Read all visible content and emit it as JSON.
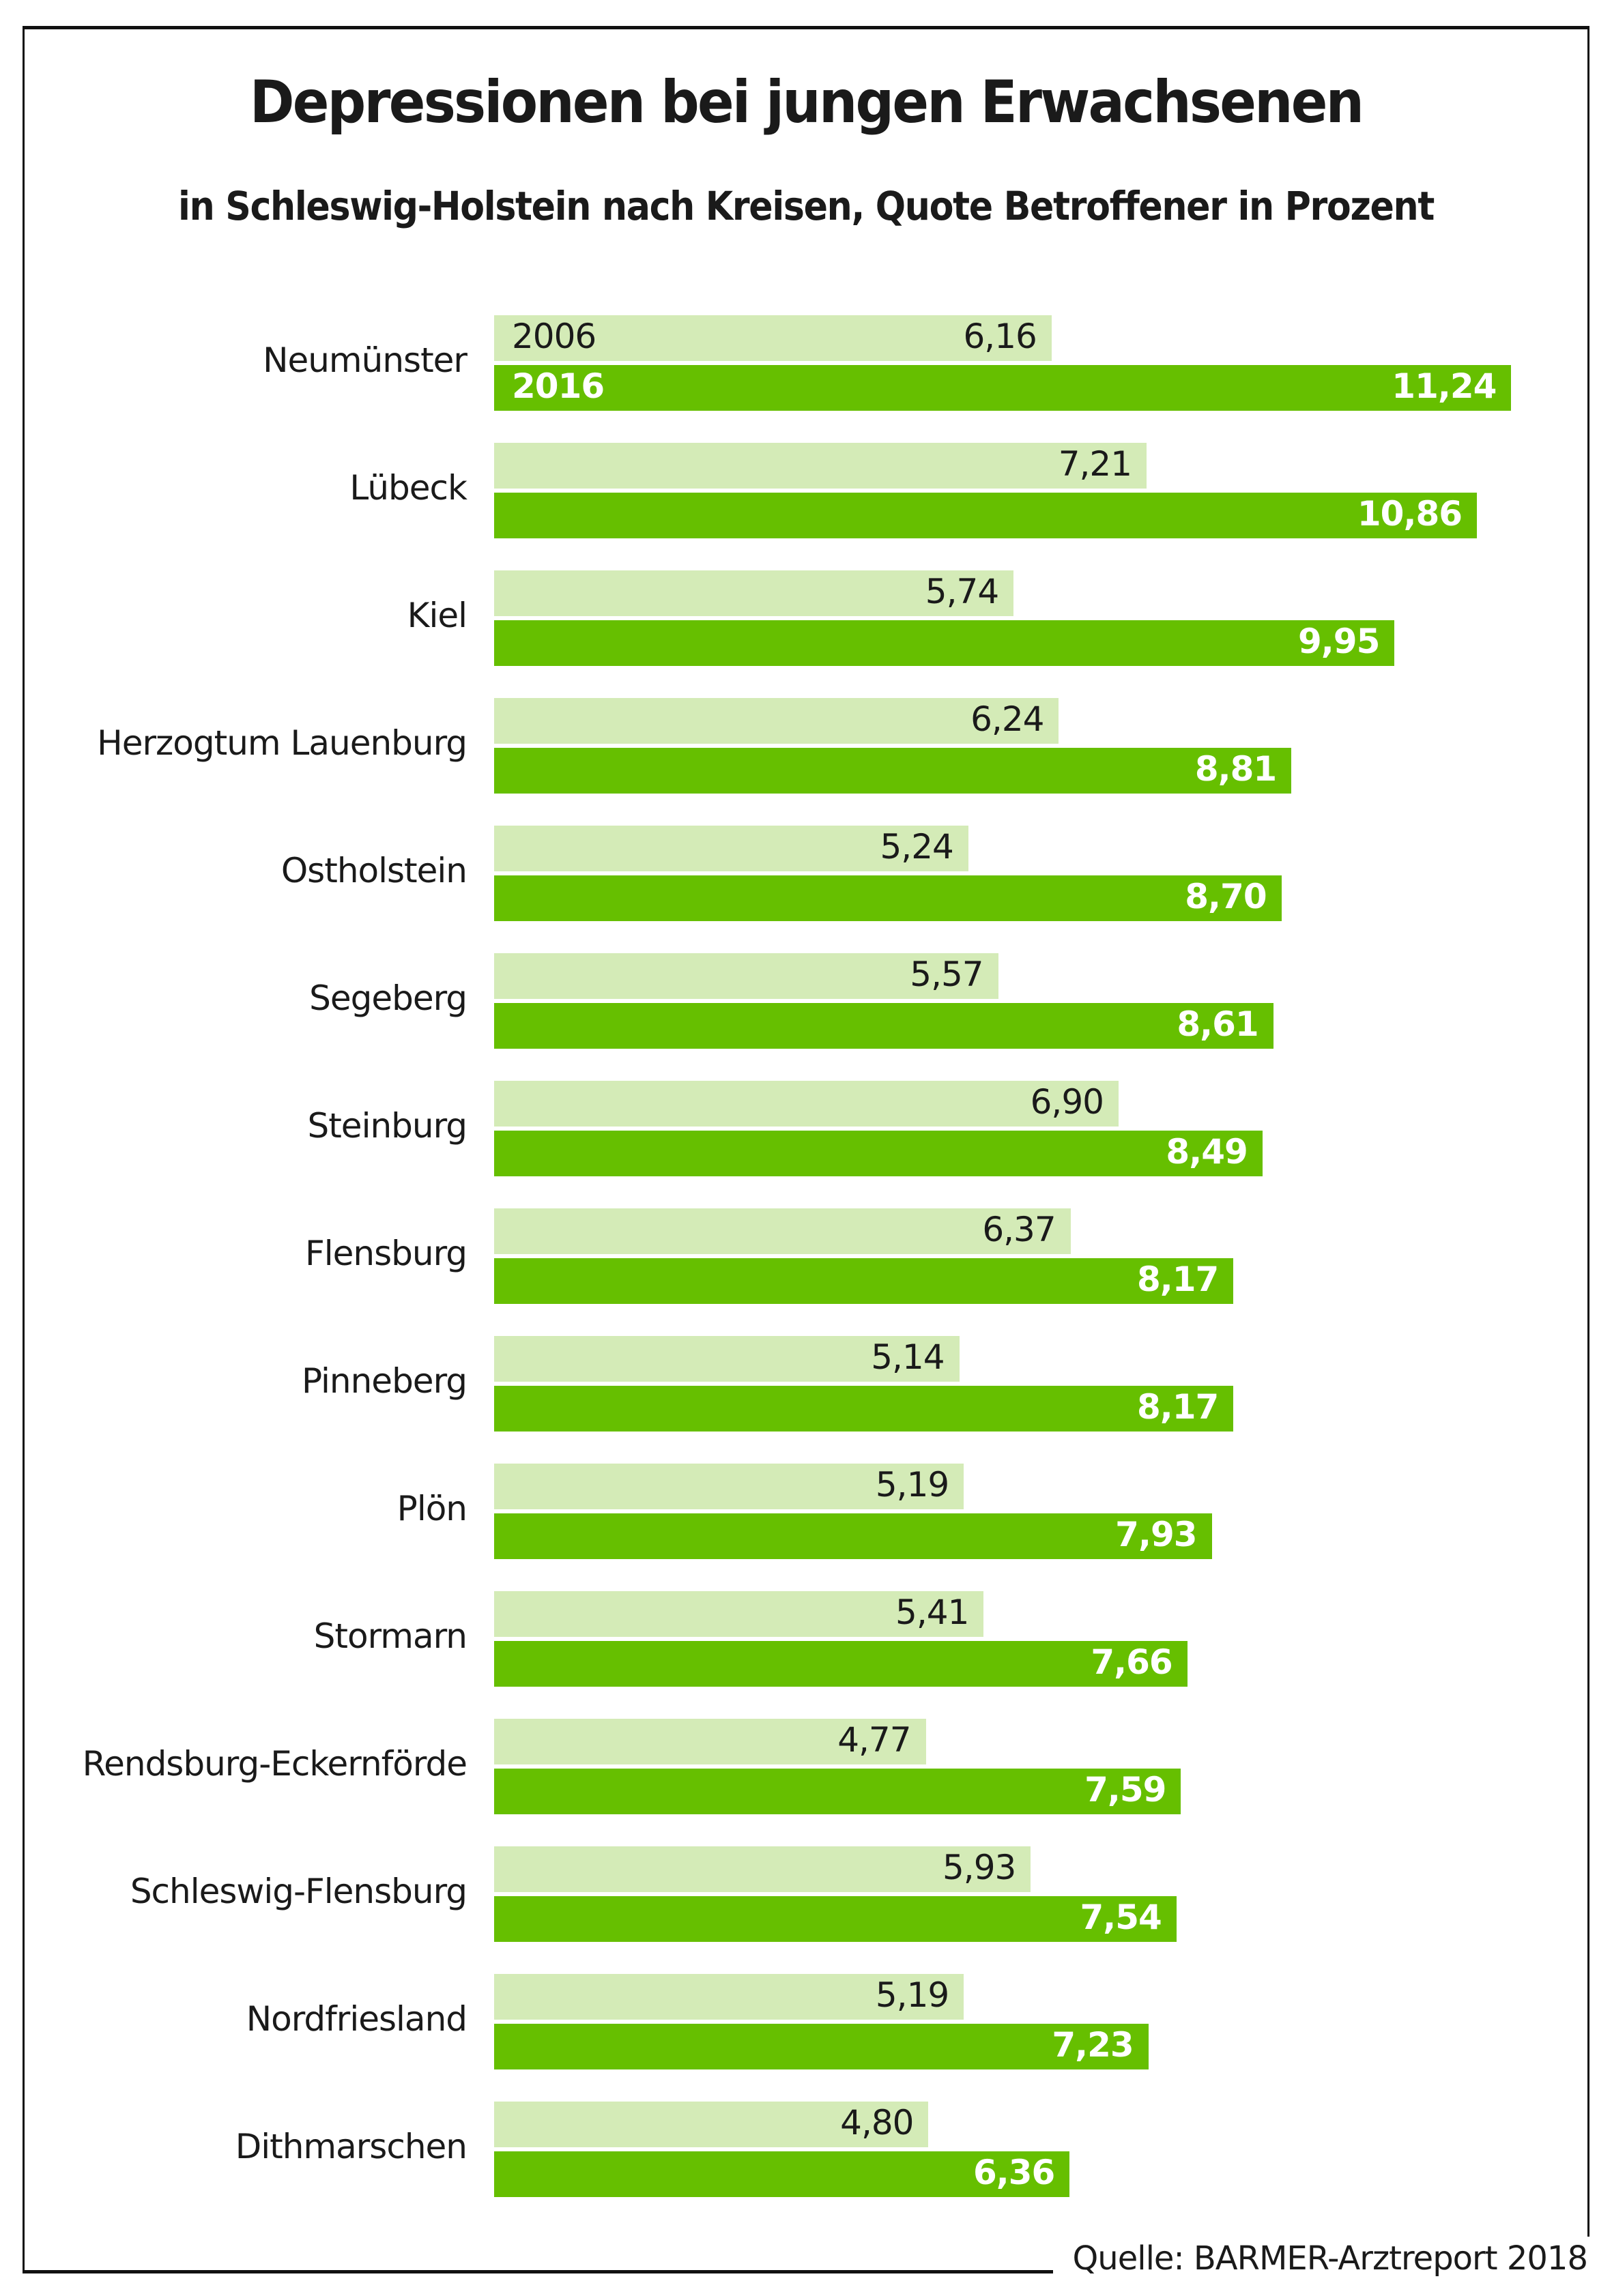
{
  "chart_data": {
    "type": "bar",
    "orientation": "horizontal",
    "title": "Depressionen bei jungen Erwachsenen",
    "subtitle": "in Schleswig-Holstein nach Kreisen, Quote Betroffener in Prozent",
    "xlabel": "",
    "ylabel": "",
    "source": "Quelle: BARMER-Arztreport 2018",
    "grid": false,
    "xlim": [
      0,
      11.24
    ],
    "categories": [
      "Neumünster",
      "Lübeck",
      "Kiel",
      "Herzogtum Lauenburg",
      "Ostholstein",
      "Segeberg",
      "Steinburg",
      "Flensburg",
      "Pinneberg",
      "Plön",
      "Stormarn",
      "Rendsburg-Eckernförde",
      "Schleswig-Flensburg",
      "Nordfriesland",
      "Dithmarschen"
    ],
    "series": [
      {
        "name": "2006",
        "color": "#d4ebb7",
        "values": [
          6.16,
          7.21,
          5.74,
          6.24,
          5.24,
          5.57,
          6.9,
          6.37,
          5.14,
          5.19,
          5.41,
          4.77,
          5.93,
          5.19,
          4.8
        ],
        "labels": [
          "6,16",
          "7,21",
          "5,74",
          "6,24",
          "5,24",
          "5,57",
          "6,90",
          "6,37",
          "5,14",
          "5,19",
          "5,41",
          "4,77",
          "5,93",
          "5,19",
          "4,80"
        ]
      },
      {
        "name": "2016",
        "color": "#66bf00",
        "values": [
          11.24,
          10.86,
          9.95,
          8.81,
          8.7,
          8.61,
          8.49,
          8.17,
          8.17,
          7.93,
          7.66,
          7.59,
          7.54,
          7.23,
          6.36
        ],
        "labels": [
          "11,24",
          "10,86",
          "9,95",
          "8,81",
          "8,70",
          "8,61",
          "8,49",
          "8,17",
          "8,17",
          "7,93",
          "7,66",
          "7,59",
          "7,54",
          "7,23",
          "6,36"
        ]
      }
    ],
    "legend": "inline-in-first-bars"
  }
}
